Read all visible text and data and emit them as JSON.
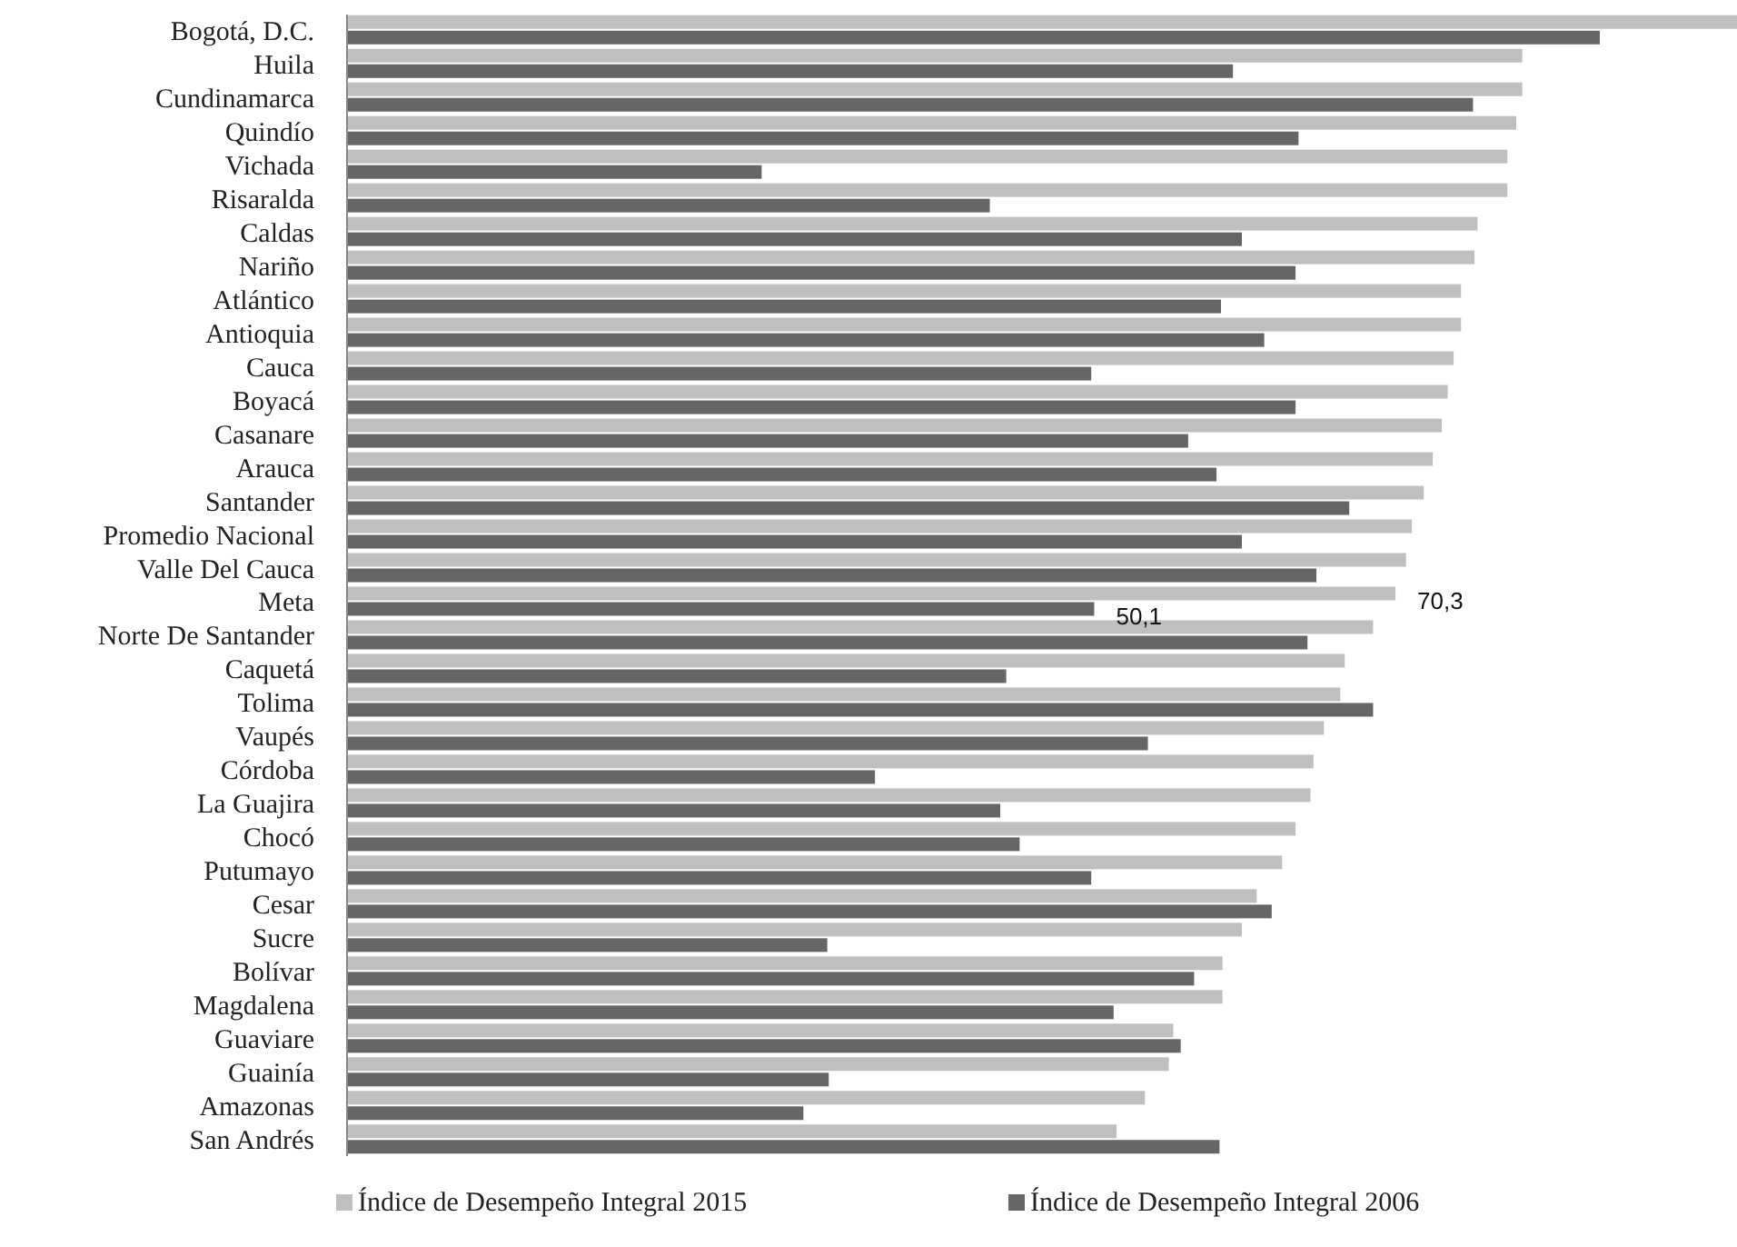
{
  "chart_data": {
    "type": "bar",
    "orientation": "horizontal",
    "categories": [
      "Bogotá, D.C.",
      "Huila",
      "Cundinamarca",
      "Quindío",
      "Vichada",
      "Risaralda",
      "Caldas",
      "Nariño",
      "Atlántico",
      "Antioquia",
      "Cauca",
      "Boyacá",
      "Casanare",
      "Arauca",
      "Santander",
      "Promedio Nacional",
      "Valle Del Cauca",
      "Meta",
      "Norte De Santander",
      "Caquetá",
      "Tolima",
      "Vaupés",
      "Córdoba",
      "La Guajira",
      "Chocó",
      "Putumayo",
      "Cesar",
      "Sucre",
      "Bolívar",
      "Magdalena",
      "Guaviare",
      "Guainía",
      "Amazonas",
      "San Andrés"
    ],
    "series": [
      {
        "name": "Índice de Desempeño Integral 2015",
        "color": "#bfbfbf",
        "values": [
          93.2,
          78.8,
          78.8,
          78.4,
          77.8,
          77.8,
          75.8,
          75.6,
          74.7,
          74.7,
          74.2,
          73.8,
          73.4,
          72.8,
          72.2,
          71.4,
          71.0,
          70.3,
          68.8,
          66.9,
          66.6,
          65.5,
          64.8,
          64.6,
          63.6,
          62.7,
          61.0,
          60.0,
          58.7,
          58.7,
          55.4,
          55.1,
          53.5,
          51.6
        ],
        "value_labels": [
          null,
          null,
          null,
          null,
          null,
          null,
          null,
          null,
          null,
          null,
          null,
          null,
          null,
          null,
          null,
          null,
          null,
          "70,3",
          null,
          null,
          null,
          null,
          null,
          null,
          null,
          null,
          null,
          null,
          null,
          null,
          null,
          null,
          null,
          null
        ]
      },
      {
        "name": "Índice de Desempeño Integral 2006",
        "color": "#666666",
        "values": [
          84.0,
          59.4,
          75.5,
          63.8,
          27.8,
          43.1,
          60.0,
          63.6,
          58.6,
          61.5,
          49.9,
          63.6,
          56.4,
          58.3,
          67.2,
          60.0,
          65.0,
          50.1,
          64.4,
          44.2,
          68.8,
          53.7,
          35.4,
          43.8,
          45.1,
          49.9,
          62.0,
          32.2,
          56.8,
          51.4,
          55.9,
          32.3,
          30.6,
          58.5
        ],
        "value_labels": [
          null,
          null,
          null,
          null,
          null,
          null,
          null,
          null,
          null,
          null,
          null,
          null,
          null,
          null,
          null,
          null,
          null,
          "50,1",
          null,
          null,
          null,
          null,
          null,
          null,
          null,
          null,
          null,
          null,
          null,
          null,
          null,
          null,
          null,
          null
        ]
      }
    ],
    "legend": "bottom"
  }
}
